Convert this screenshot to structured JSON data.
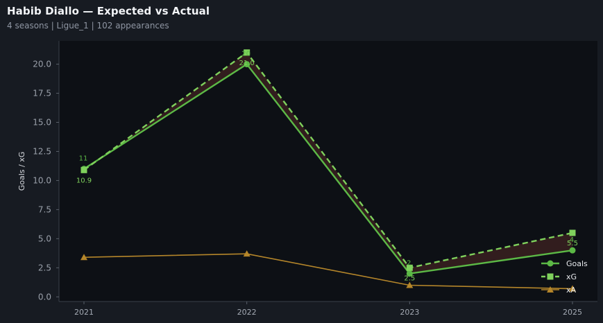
{
  "header": {
    "title": "Habib Diallo — Expected vs Actual",
    "subtitle": "4 seasons | Ligue_1 | 102 appearances"
  },
  "colors": {
    "background": "#171b22",
    "plot_area": "#0d1015",
    "goals": "#5cb946",
    "xg": "#7fd15c",
    "xa": "#b5862a",
    "gap_fill": "#3a2020"
  },
  "chart_data": {
    "type": "line",
    "title": "Habib Diallo — Expected vs Actual",
    "subtitle": "4 seasons | Ligue_1 | 102 appearances",
    "xlabel": "",
    "ylabel": "Goals / xG",
    "categories": [
      "2021",
      "2022",
      "2023",
      "2025"
    ],
    "ylim": [
      -0.4,
      22
    ],
    "yticks": [
      "0.0",
      "2.5",
      "5.0",
      "7.5",
      "10.0",
      "12.5",
      "15.0",
      "17.5",
      "20.0"
    ],
    "ytick_values": [
      0,
      2.5,
      5,
      7.5,
      10,
      12.5,
      15,
      17.5,
      20
    ],
    "grid": false,
    "legend_position": "lower-right",
    "series": [
      {
        "name": "Goals",
        "values": [
          11,
          20,
          2,
          4
        ],
        "style": "solid",
        "marker": "circle",
        "labels": [
          "11",
          "20",
          "2",
          "4"
        ]
      },
      {
        "name": "xG",
        "values": [
          10.9,
          21.0,
          2.5,
          5.5
        ],
        "style": "dashed",
        "marker": "square",
        "labels": [
          "10.9",
          "21.0",
          "2.5",
          "5.5"
        ]
      },
      {
        "name": "xA",
        "values": [
          3.4,
          3.7,
          1.0,
          0.7
        ],
        "style": "solid",
        "marker": "triangle"
      }
    ]
  }
}
